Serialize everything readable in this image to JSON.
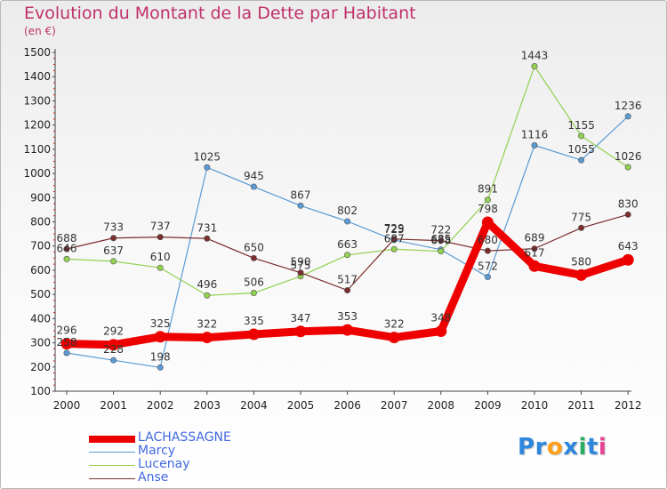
{
  "header": {
    "title": "Evolution du Montant de la Dette par Habitant",
    "unit": "(en €)"
  },
  "brand": {
    "letters": [
      "P",
      "r",
      "o",
      "x",
      "i",
      "t",
      "i"
    ],
    "colors": [
      "#2e86de",
      "#2e86de",
      "#ff9f1a",
      "#2e86de",
      "#27ae60",
      "#2e86de",
      "#e84393"
    ]
  },
  "chart_data": {
    "type": "line",
    "title": "Evolution du Montant de la Dette par Habitant",
    "ylabel": "(en €)",
    "xlabel": "",
    "ylim": [
      100,
      1500
    ],
    "yticks": [
      100,
      200,
      300,
      400,
      500,
      600,
      700,
      800,
      900,
      1000,
      1100,
      1200,
      1300,
      1400,
      1500
    ],
    "categories": [
      "2000",
      "2001",
      "2002",
      "2003",
      "2004",
      "2005",
      "2006",
      "2007",
      "2008",
      "2009",
      "2010",
      "2011",
      "2012"
    ],
    "grid": false,
    "legend_position": "bottom-left",
    "series": [
      {
        "name": "Marcy",
        "color": "#5b9bd5",
        "values": [
          258,
          228,
          198,
          1025,
          945,
          867,
          802,
          725,
          685,
          572,
          1116,
          1055,
          1236
        ]
      },
      {
        "name": "Lucenay",
        "color": "#92d050",
        "values": [
          646,
          637,
          610,
          496,
          506,
          575,
          663,
          687,
          678,
          891,
          1443,
          1155,
          1026
        ]
      },
      {
        "name": "Anse",
        "color": "#7b2d2d",
        "values": [
          688,
          733,
          737,
          731,
          650,
          590,
          517,
          729,
          722,
          680,
          689,
          775,
          830
        ]
      },
      {
        "name": "LACHASSAGNE",
        "color": "#ee0000",
        "values": [
          296,
          292,
          325,
          322,
          335,
          347,
          353,
          322,
          348,
          798,
          617,
          580,
          643
        ]
      }
    ]
  }
}
